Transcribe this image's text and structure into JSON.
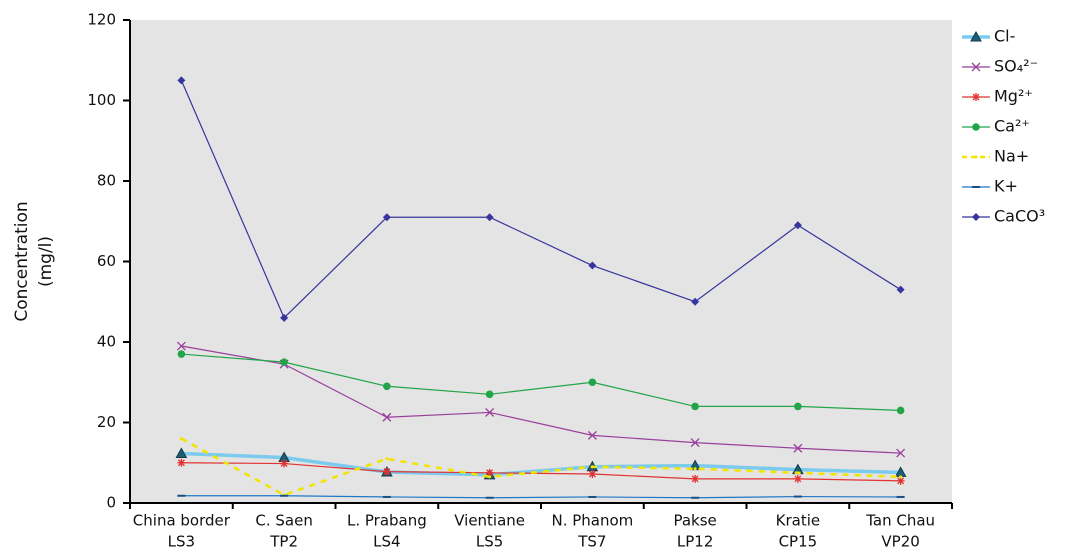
{
  "chart_data": {
    "type": "line",
    "y_label": [
      "Concentration",
      "(mg/l)"
    ],
    "categories": [
      [
        "China border",
        "LS3"
      ],
      [
        "C. Saen",
        "TP2"
      ],
      [
        "L. Prabang",
        "LS4"
      ],
      [
        "Vientiane",
        "LS5"
      ],
      [
        "N. Phanom",
        "TS7"
      ],
      [
        "Pakse",
        "LP12"
      ],
      [
        "Kratie",
        "CP15"
      ],
      [
        "Tan Chau",
        "VP20"
      ]
    ],
    "ylim": [
      0,
      120
    ],
    "yticks": [
      0,
      20,
      40,
      60,
      80,
      100,
      120
    ],
    "series": [
      {
        "name": "Cl-",
        "color": "#7ccbee",
        "marker": "triangle",
        "values": [
          12.3,
          11.3,
          7.7,
          7,
          9,
          9.3,
          8.3,
          7.6
        ]
      },
      {
        "name": "SO₄²⁻",
        "color": "#9a3f9a",
        "marker": "x",
        "values": [
          39,
          34.5,
          21.3,
          22.5,
          16.8,
          15,
          13.6,
          12.4
        ]
      },
      {
        "name": "Mg²⁺",
        "color": "#e23232",
        "marker": "star",
        "values": [
          10,
          9.8,
          7.8,
          7.5,
          7.2,
          6,
          6,
          5.5
        ]
      },
      {
        "name": "Ca²⁺",
        "color": "#22a548",
        "marker": "circle",
        "values": [
          37,
          35,
          29,
          27,
          30,
          24,
          24,
          23
        ]
      },
      {
        "name": "Na+",
        "color": "#f3e400",
        "marker": "dash-line",
        "values": [
          16,
          2,
          11,
          6.5,
          9,
          8.5,
          7.5,
          6.5
        ]
      },
      {
        "name": "K+",
        "color": "#1f78c6",
        "marker": "dash",
        "values": [
          1.8,
          1.8,
          1.5,
          1.3,
          1.5,
          1.3,
          1.6,
          1.5
        ]
      },
      {
        "name": "CaCO³",
        "color": "#36369e",
        "marker": "diamond",
        "values": [
          105,
          46,
          71,
          71,
          59,
          50,
          69,
          53
        ]
      }
    ]
  }
}
